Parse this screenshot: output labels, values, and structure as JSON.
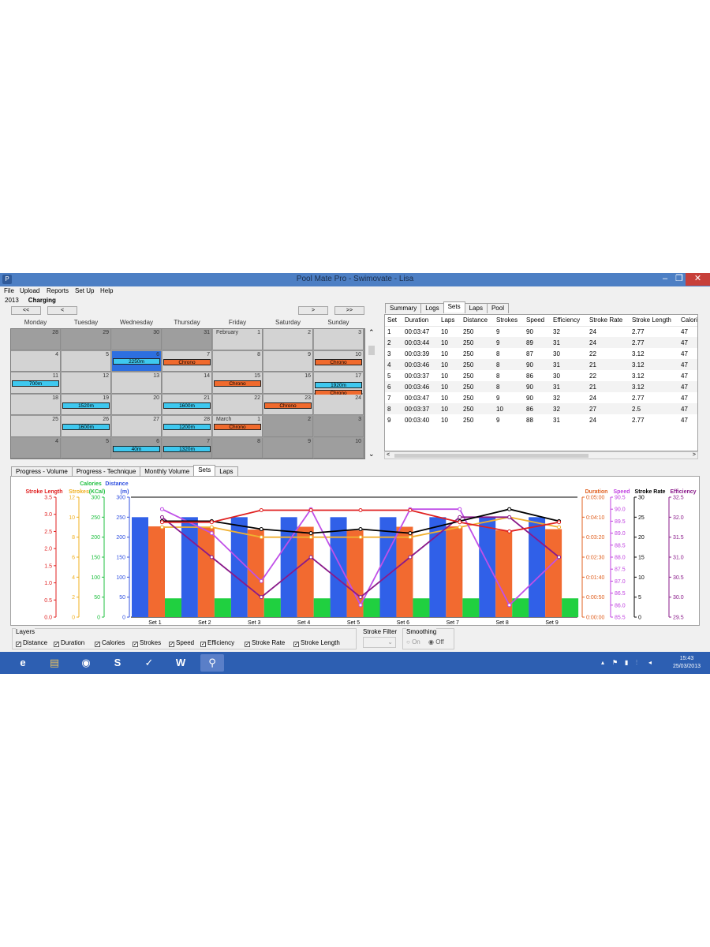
{
  "window": {
    "title": "Pool Mate Pro - Swimovate - Lisa",
    "min": "–",
    "max": "❐",
    "close": "✕"
  },
  "menu": [
    "File",
    "Upload",
    "Reports",
    "Set Up",
    "Help"
  ],
  "status": {
    "year": "2013",
    "state": "Charging"
  },
  "nav": {
    "prev2": "<<",
    "prev": "<",
    "next": ">",
    "next2": ">>"
  },
  "days": [
    "Monday",
    "Tuesday",
    "Wednesday",
    "Thursday",
    "Friday",
    "Saturday",
    "Sunday"
  ],
  "calendar": [
    [
      {
        "d": "28",
        "o": true
      },
      {
        "d": "29",
        "o": true
      },
      {
        "d": "30",
        "o": true
      },
      {
        "d": "31",
        "o": true
      },
      {
        "d": "1",
        "m": "February"
      },
      {
        "d": "2"
      },
      {
        "d": "3"
      }
    ],
    [
      {
        "d": "4"
      },
      {
        "d": "5"
      },
      {
        "d": "6",
        "sel": true,
        "ev": [
          {
            "t": "2250m",
            "k": "swim"
          }
        ]
      },
      {
        "d": "7",
        "ev": [
          {
            "t": "Chrono",
            "k": "chrono"
          }
        ]
      },
      {
        "d": "8"
      },
      {
        "d": "9"
      },
      {
        "d": "10",
        "ev": [
          {
            "t": "Chrono",
            "k": "chrono"
          }
        ]
      }
    ],
    [
      {
        "d": "11",
        "ev": [
          {
            "t": "700m",
            "k": "swim"
          }
        ]
      },
      {
        "d": "12"
      },
      {
        "d": "13"
      },
      {
        "d": "14"
      },
      {
        "d": "15",
        "ev": [
          {
            "t": "Chrono",
            "k": "chrono"
          }
        ]
      },
      {
        "d": "16"
      },
      {
        "d": "17",
        "ev": [
          {
            "t": "1920m",
            "k": "swim"
          },
          {
            "t": "Chrono",
            "k": "chrono"
          }
        ]
      }
    ],
    [
      {
        "d": "18"
      },
      {
        "d": "19",
        "ev": [
          {
            "t": "1520m",
            "k": "swim"
          }
        ]
      },
      {
        "d": "20"
      },
      {
        "d": "21",
        "ev": [
          {
            "t": "1600m",
            "k": "swim"
          }
        ]
      },
      {
        "d": "22"
      },
      {
        "d": "23",
        "ev": [
          {
            "t": "Chrono",
            "k": "chrono"
          }
        ]
      },
      {
        "d": "24"
      }
    ],
    [
      {
        "d": "25"
      },
      {
        "d": "26",
        "ev": [
          {
            "t": "1600m",
            "k": "swim"
          }
        ]
      },
      {
        "d": "27"
      },
      {
        "d": "28",
        "ev": [
          {
            "t": "1200m",
            "k": "swim"
          }
        ]
      },
      {
        "d": "1",
        "m": "March",
        "ev": [
          {
            "t": "Chrono",
            "k": "chrono"
          }
        ]
      },
      {
        "d": "2",
        "o": true
      },
      {
        "d": "3",
        "o": true
      }
    ],
    [
      {
        "d": "4",
        "o": true
      },
      {
        "d": "5",
        "o": true
      },
      {
        "d": "6",
        "o": true,
        "ev": [
          {
            "t": "40m",
            "k": "swim"
          }
        ]
      },
      {
        "d": "7",
        "o": true,
        "ev": [
          {
            "t": "1320m",
            "k": "swim"
          }
        ]
      },
      {
        "d": "8",
        "o": true
      },
      {
        "d": "9",
        "o": true
      },
      {
        "d": "10",
        "o": true
      }
    ]
  ],
  "scroll": {
    "up": "⌃",
    "down": "⌄",
    "left": "<",
    "right": ">"
  },
  "right_tabs": [
    "Summary",
    "Logs",
    "Sets",
    "Laps",
    "Pool"
  ],
  "right_active": 2,
  "table": {
    "columns": [
      "Set",
      "Duration",
      "Laps",
      "Distance",
      "Strokes",
      "Speed",
      "Efficiency",
      "Stroke Rate",
      "Stroke Length",
      "Calorie"
    ],
    "rows": [
      [
        "1",
        "00:03:47",
        "10",
        "250",
        "9",
        "90",
        "32",
        "24",
        "2.77",
        "47"
      ],
      [
        "2",
        "00:03:44",
        "10",
        "250",
        "9",
        "89",
        "31",
        "24",
        "2.77",
        "47"
      ],
      [
        "3",
        "00:03:39",
        "10",
        "250",
        "8",
        "87",
        "30",
        "22",
        "3.12",
        "47"
      ],
      [
        "4",
        "00:03:46",
        "10",
        "250",
        "8",
        "90",
        "31",
        "21",
        "3.12",
        "47"
      ],
      [
        "5",
        "00:03:37",
        "10",
        "250",
        "8",
        "86",
        "30",
        "22",
        "3.12",
        "47"
      ],
      [
        "6",
        "00:03:46",
        "10",
        "250",
        "8",
        "90",
        "31",
        "21",
        "3.12",
        "47"
      ],
      [
        "7",
        "00:03:47",
        "10",
        "250",
        "9",
        "90",
        "32",
        "24",
        "2.77",
        "47"
      ],
      [
        "8",
        "00:03:37",
        "10",
        "250",
        "10",
        "86",
        "32",
        "27",
        "2.5",
        "47"
      ],
      [
        "9",
        "00:03:40",
        "10",
        "250",
        "9",
        "88",
        "31",
        "24",
        "2.77",
        "47"
      ]
    ]
  },
  "bottom_tabs": [
    "Progress - Volume",
    "Progress - Technique",
    "Monthly Volume",
    "Sets",
    "Laps"
  ],
  "bottom_active": 3,
  "chart_data": {
    "type": "bar",
    "categories": [
      "Set 1",
      "Set 2",
      "Set 3",
      "Set 4",
      "Set 5",
      "Set 6",
      "Set 7",
      "Set 8",
      "Set 9"
    ],
    "axes": {
      "stroke_length": {
        "label": "Stroke Length",
        "min": 0,
        "max": 3.5,
        "ticks": [
          "0.0",
          "0.5",
          "1.0",
          "1.5",
          "2.0",
          "2.5",
          "3.0",
          "3.5"
        ],
        "color": "#e02020"
      },
      "strokes": {
        "label": "Strokes",
        "min": 0,
        "max": 12,
        "ticks": [
          "0",
          "2",
          "4",
          "6",
          "8",
          "10",
          "12"
        ],
        "color": "#f0b020"
      },
      "calories": {
        "label": "Calories",
        "label2": "(KCal)",
        "min": 0,
        "max": 300,
        "ticks": [
          "0",
          "50",
          "100",
          "150",
          "200",
          "250",
          "300"
        ],
        "color": "#20c040"
      },
      "distance": {
        "label": "Distance",
        "label2": "(m)",
        "min": 0,
        "max": 300,
        "ticks": [
          "0",
          "50",
          "100",
          "150",
          "200",
          "250",
          "300"
        ],
        "color": "#3050e0"
      },
      "duration": {
        "label": "Duration",
        "min": 0,
        "max": 300,
        "ticks": [
          "0:00:00",
          "0:00:50",
          "0:01:40",
          "0:02:30",
          "0:03:20",
          "0:04:10",
          "0:05:00"
        ],
        "color": "#e06020"
      },
      "speed": {
        "label": "Speed",
        "min": 85.5,
        "max": 90.5,
        "ticks": [
          "85.5",
          "86.0",
          "86.5",
          "87.0",
          "87.5",
          "88.0",
          "88.5",
          "89.0",
          "89.5",
          "90.0",
          "90.5"
        ],
        "color": "#c040e0"
      },
      "stroke_rate": {
        "label": "Stroke Rate",
        "min": 0,
        "max": 30,
        "ticks": [
          "0",
          "5",
          "10",
          "15",
          "20",
          "25",
          "30"
        ],
        "color": "#000000"
      },
      "efficiency": {
        "label": "Efficiency",
        "min": 29.5,
        "max": 32.5,
        "ticks": [
          "29.5",
          "30.0",
          "30.5",
          "31.0",
          "31.5",
          "32.0",
          "32.5"
        ],
        "color": "#8a1a8a"
      }
    },
    "series": [
      {
        "name": "Distance",
        "axis": "distance",
        "kind": "bar",
        "color": "#3060e8",
        "values": [
          250,
          250,
          250,
          250,
          250,
          250,
          250,
          250,
          250
        ]
      },
      {
        "name": "Duration",
        "axis": "duration",
        "kind": "bar",
        "color": "#f26a30",
        "values": [
          227,
          224,
          219,
          226,
          217,
          226,
          227,
          217,
          220
        ]
      },
      {
        "name": "Calories",
        "axis": "calories",
        "kind": "bar",
        "color": "#20d040",
        "values": [
          47,
          47,
          47,
          47,
          47,
          47,
          47,
          47,
          47
        ]
      },
      {
        "name": "Strokes",
        "axis": "strokes",
        "kind": "line",
        "color": "#f0b030",
        "values": [
          9,
          9,
          8,
          8,
          8,
          8,
          9,
          10,
          9
        ]
      },
      {
        "name": "Speed",
        "axis": "speed",
        "kind": "line",
        "color": "#c050e8",
        "values": [
          90,
          89,
          87,
          90,
          86,
          90,
          90,
          86,
          88
        ]
      },
      {
        "name": "Efficiency",
        "axis": "efficiency",
        "kind": "line",
        "color": "#8a1a8a",
        "values": [
          32,
          31,
          30,
          31,
          30,
          31,
          32,
          32,
          31
        ]
      },
      {
        "name": "Stroke Rate",
        "axis": "stroke_rate",
        "kind": "line",
        "color": "#000000",
        "values": [
          24,
          24,
          22,
          21,
          22,
          21,
          24,
          27,
          24
        ]
      },
      {
        "name": "Stroke Length",
        "axis": "stroke_length",
        "kind": "line",
        "color": "#e02020",
        "values": [
          2.77,
          2.77,
          3.12,
          3.12,
          3.12,
          3.12,
          2.77,
          2.5,
          2.77
        ]
      }
    ]
  },
  "layers": {
    "title": "Layers",
    "items": [
      "Distance",
      "Duration",
      "Calories",
      "Strokes",
      "Speed",
      "Efficiency",
      "Stroke Rate",
      "Stroke Length"
    ],
    "check": "✓"
  },
  "stroke_filter": {
    "label": "Stroke Filter"
  },
  "smoothing": {
    "label": "Smoothing",
    "on": "On",
    "off": "Off"
  },
  "taskbar": {
    "icons": [
      "ie-icon",
      "explorer-icon",
      "chrome-icon",
      "skype-icon",
      "app-icon",
      "word-icon",
      "poolmate-icon"
    ],
    "glyphs": [
      "e",
      "▤",
      "◉",
      "S",
      "✓",
      "W",
      "⚲"
    ],
    "time": "15:43",
    "date": "25/03/2013"
  }
}
